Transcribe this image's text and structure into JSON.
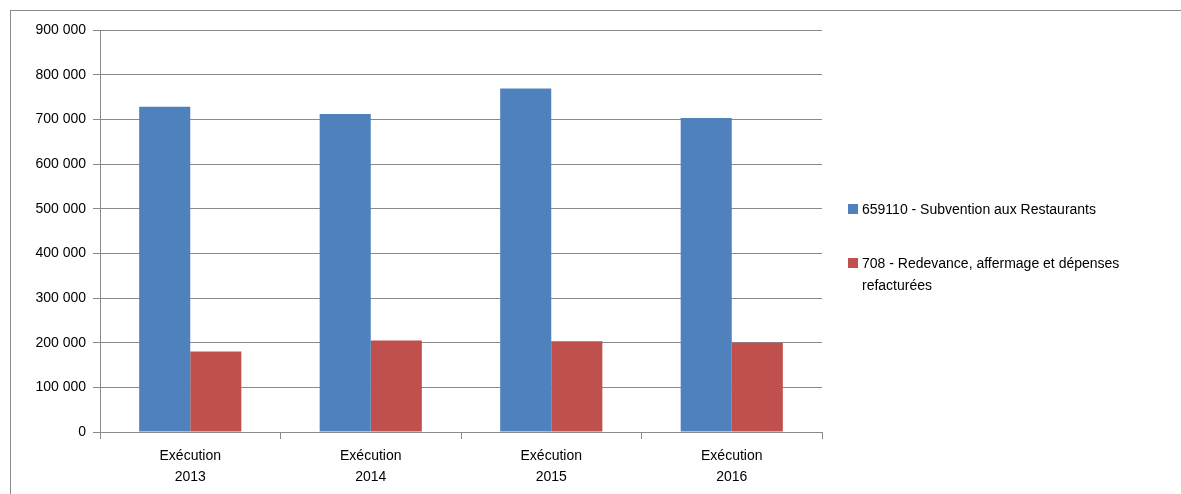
{
  "chart_data": {
    "type": "bar",
    "categories": [
      "Exécution 2013",
      "Exécution 2014",
      "Exécution 2015",
      "Exécution 2016"
    ],
    "series": [
      {
        "name": "659110 - Subvention aux Restaurants",
        "color": "#4f81bd",
        "values": [
          728000,
          712000,
          769000,
          703000
        ]
      },
      {
        "name": "708 - Redevance, affermage et dépenses refacturées",
        "color": "#c0504d",
        "values": [
          180000,
          205000,
          203000,
          200000
        ]
      }
    ],
    "ylim": [
      0,
      900000
    ],
    "yticks": [
      0,
      {
        "value": 100000,
        "label": "100 000"
      },
      {
        "value": 200000,
        "label": "200 000"
      },
      {
        "value": 300000,
        "label": "300 000"
      },
      {
        "value": 400000,
        "label": "400 000"
      },
      {
        "value": 500000,
        "label": "500 000"
      },
      {
        "value": 600000,
        "label": "600 000"
      },
      {
        "value": 700000,
        "label": "700 000"
      },
      {
        "value": 800000,
        "label": "800 000"
      },
      {
        "value": 900000,
        "label": "900 000"
      }
    ],
    "grid": "y",
    "legend": "right"
  }
}
